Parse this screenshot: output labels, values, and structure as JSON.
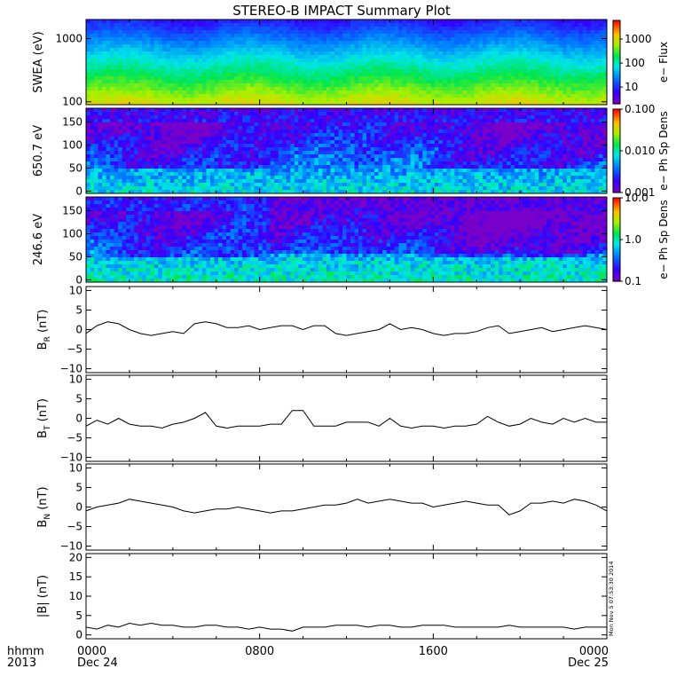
{
  "title": "STEREO-B IMPACT Summary Plot",
  "footer": {
    "axis_label_top": "hhmm",
    "axis_label_bottom": "2013",
    "x_ticks": [
      {
        "hour": 0,
        "label": "0000",
        "sub": "Dec 24"
      },
      {
        "hour": 8,
        "label": "0800",
        "sub": ""
      },
      {
        "hour": 16,
        "label": "1600",
        "sub": ""
      },
      {
        "hour": 24,
        "label": "0000",
        "sub": "Dec 25"
      }
    ],
    "stamp": "Mon Nov  5 07:53:30 2014"
  },
  "chart_data": [
    {
      "id": "swea",
      "type": "heatmap",
      "ylabel": "SWEA (eV)",
      "yscale": "log",
      "ylim": [
        90,
        2000
      ],
      "y_ticks": [
        {
          "v": 100,
          "label": "100"
        },
        {
          "v": 1000,
          "label": "1000"
        }
      ],
      "colorbar": {
        "label": "e− Flux",
        "scale": "log",
        "range": [
          2,
          6000
        ],
        "ticks": [
          {
            "v": 10,
            "label": "10"
          },
          {
            "v": 100,
            "label": "100"
          },
          {
            "v": 1000,
            "label": "1000"
          }
        ]
      }
    },
    {
      "id": "pad650",
      "type": "heatmap",
      "ylabel": "650.7 eV",
      "yscale": "linear",
      "ylim": [
        -5,
        180
      ],
      "y_ticks": [
        {
          "v": 0,
          "label": "0"
        },
        {
          "v": 50,
          "label": "50"
        },
        {
          "v": 100,
          "label": "100"
        },
        {
          "v": 150,
          "label": "150"
        }
      ],
      "colorbar": {
        "label": "e− Ph Sp Dens",
        "scale": "log",
        "range": [
          0.001,
          0.1
        ],
        "ticks": [
          {
            "v": 0.001,
            "label": "0.001"
          },
          {
            "v": 0.01,
            "label": "0.010"
          },
          {
            "v": 0.1,
            "label": "0.100"
          }
        ]
      }
    },
    {
      "id": "pad246",
      "type": "heatmap",
      "ylabel": "246.6 eV",
      "yscale": "linear",
      "ylim": [
        -5,
        180
      ],
      "y_ticks": [
        {
          "v": 0,
          "label": "0"
        },
        {
          "v": 50,
          "label": "50"
        },
        {
          "v": 100,
          "label": "100"
        },
        {
          "v": 150,
          "label": "150"
        }
      ],
      "colorbar": {
        "label": "e− Ph Sp Dens",
        "scale": "log",
        "range": [
          0.1,
          10
        ],
        "ticks": [
          {
            "v": 0.1,
            "label": "0.1"
          },
          {
            "v": 1,
            "label": "1.0"
          },
          {
            "v": 10,
            "label": "10.0"
          }
        ]
      }
    },
    {
      "id": "br",
      "type": "line",
      "ylabel_main": "B",
      "ylabel_sub": "R",
      "ylabel_unit": " (nT)",
      "ylim": [
        -11,
        11
      ],
      "y_ticks": [
        {
          "v": -10,
          "label": "−10"
        },
        {
          "v": -5,
          "label": "−5"
        },
        {
          "v": 0,
          "label": "0"
        },
        {
          "v": 5,
          "label": "5"
        },
        {
          "v": 10,
          "label": "10"
        }
      ],
      "x": [
        0,
        0.5,
        1,
        1.5,
        2,
        2.5,
        3,
        3.5,
        4,
        4.5,
        5,
        5.5,
        6,
        6.5,
        7,
        7.5,
        8,
        8.5,
        9,
        9.5,
        10,
        10.5,
        11,
        11.5,
        12,
        12.5,
        13,
        13.5,
        14,
        14.5,
        15,
        15.5,
        16,
        16.5,
        17,
        17.5,
        18,
        18.5,
        19,
        19.5,
        20,
        20.5,
        21,
        21.5,
        22,
        22.5,
        23,
        23.5,
        24
      ],
      "y": [
        -1,
        1,
        2,
        1.5,
        0,
        -1,
        -1.5,
        -1,
        -0.5,
        -1,
        1.5,
        2,
        1.5,
        0.5,
        0.5,
        1,
        0,
        0.5,
        1,
        1,
        0,
        1,
        1,
        -1,
        -1.5,
        -1,
        -0.5,
        0,
        1.5,
        0,
        0.5,
        0,
        -1,
        -1.5,
        -1,
        -1,
        -0.5,
        0.5,
        1,
        -1,
        -0.5,
        0,
        0.5,
        -0.5,
        0,
        0.5,
        1,
        0.5,
        0
      ]
    },
    {
      "id": "bt",
      "type": "line",
      "ylabel_main": "B",
      "ylabel_sub": "T",
      "ylabel_unit": " (nT)",
      "ylim": [
        -11,
        11
      ],
      "y_ticks": [
        {
          "v": -10,
          "label": "−10"
        },
        {
          "v": -5,
          "label": "−5"
        },
        {
          "v": 0,
          "label": "0"
        },
        {
          "v": 5,
          "label": "5"
        },
        {
          "v": 10,
          "label": "10"
        }
      ],
      "x": [
        0,
        0.5,
        1,
        1.5,
        2,
        2.5,
        3,
        3.5,
        4,
        4.5,
        5,
        5.5,
        6,
        6.5,
        7,
        7.5,
        8,
        8.5,
        9,
        9.5,
        10,
        10.5,
        11,
        11.5,
        12,
        12.5,
        13,
        13.5,
        14,
        14.5,
        15,
        15.5,
        16,
        16.5,
        17,
        17.5,
        18,
        18.5,
        19,
        19.5,
        20,
        20.5,
        21,
        21.5,
        22,
        22.5,
        23,
        23.5,
        24
      ],
      "y": [
        -2,
        -0.5,
        -1.5,
        0,
        -1.5,
        -2,
        -2,
        -2.5,
        -1.5,
        -1,
        0,
        1.5,
        -2,
        -2.5,
        -2,
        -2,
        -2,
        -1.5,
        -1.5,
        2,
        2,
        -2,
        -2,
        -2,
        -1,
        -1,
        -1,
        -2,
        0,
        -2,
        -2.5,
        -2,
        -2,
        -2.5,
        -2,
        -2,
        -1.5,
        0.5,
        -1,
        -2,
        -1.5,
        0,
        -1,
        -1.5,
        0,
        -1,
        0,
        -1,
        -1
      ]
    },
    {
      "id": "bn",
      "type": "line",
      "ylabel_main": "B",
      "ylabel_sub": "N",
      "ylabel_unit": " (nT)",
      "ylim": [
        -11,
        11
      ],
      "y_ticks": [
        {
          "v": -10,
          "label": "−10"
        },
        {
          "v": -5,
          "label": "−5"
        },
        {
          "v": 0,
          "label": "0"
        },
        {
          "v": 5,
          "label": "5"
        },
        {
          "v": 10,
          "label": "10"
        }
      ],
      "x": [
        0,
        0.5,
        1,
        1.5,
        2,
        2.5,
        3,
        3.5,
        4,
        4.5,
        5,
        5.5,
        6,
        6.5,
        7,
        7.5,
        8,
        8.5,
        9,
        9.5,
        10,
        10.5,
        11,
        11.5,
        12,
        12.5,
        13,
        13.5,
        14,
        14.5,
        15,
        15.5,
        16,
        16.5,
        17,
        17.5,
        18,
        18.5,
        19,
        19.5,
        20,
        20.5,
        21,
        21.5,
        22,
        22.5,
        23,
        23.5,
        24
      ],
      "y": [
        -1,
        0,
        0.5,
        1,
        2,
        1.5,
        1,
        0.5,
        0,
        -1,
        -1.5,
        -1,
        -0.5,
        -0.5,
        0,
        -0.5,
        -1,
        -1.5,
        -1,
        -1,
        -0.5,
        0,
        0.5,
        0.5,
        1,
        2,
        1,
        1.5,
        2,
        1.5,
        1,
        1,
        0,
        0.5,
        1,
        1.5,
        1,
        0.5,
        0.5,
        -2,
        -1,
        1,
        1,
        1.5,
        1,
        2,
        1.5,
        0.5,
        -1
      ]
    },
    {
      "id": "bmag",
      "type": "line",
      "ylabel_main": "|B| (nT)",
      "ylim": [
        -1,
        21
      ],
      "y_ticks": [
        {
          "v": 0,
          "label": "0"
        },
        {
          "v": 5,
          "label": "5"
        },
        {
          "v": 10,
          "label": "10"
        },
        {
          "v": 15,
          "label": "15"
        },
        {
          "v": 20,
          "label": "20"
        }
      ],
      "x": [
        0,
        0.5,
        1,
        1.5,
        2,
        2.5,
        3,
        3.5,
        4,
        4.5,
        5,
        5.5,
        6,
        6.5,
        7,
        7.5,
        8,
        8.5,
        9,
        9.5,
        10,
        10.5,
        11,
        11.5,
        12,
        12.5,
        13,
        13.5,
        14,
        14.5,
        15,
        15.5,
        16,
        16.5,
        17,
        17.5,
        18,
        18.5,
        19,
        19.5,
        20,
        20.5,
        21,
        21.5,
        22,
        22.5,
        23,
        23.5,
        24
      ],
      "y": [
        2,
        1.5,
        2.5,
        2,
        3,
        2.5,
        3,
        2.5,
        2.5,
        2,
        2,
        2.5,
        2.5,
        2,
        2,
        1.5,
        2,
        1.5,
        1.5,
        1,
        2,
        2,
        2,
        2.5,
        2.5,
        2.5,
        2,
        2.5,
        2.5,
        2,
        2,
        2.5,
        2.5,
        2.5,
        2,
        2,
        2,
        2,
        2,
        2.5,
        2,
        2,
        2,
        2,
        2,
        1.5,
        2,
        2,
        2
      ]
    }
  ]
}
